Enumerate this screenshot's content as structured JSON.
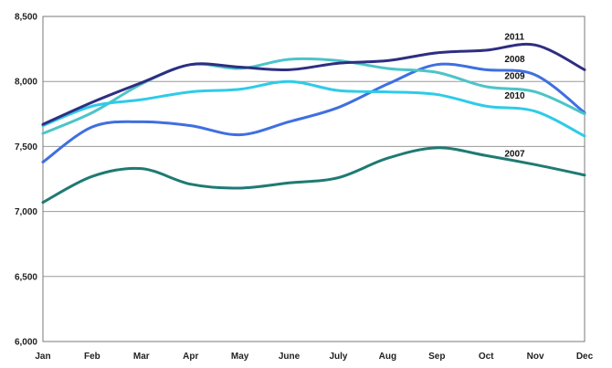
{
  "chart_data": {
    "type": "line",
    "title": "",
    "xlabel": "",
    "ylabel": "",
    "categories": [
      "Jan",
      "Feb",
      "Mar",
      "Apr",
      "May",
      "June",
      "July",
      "Aug",
      "Sep",
      "Oct",
      "Nov",
      "Dec"
    ],
    "ylim": [
      6000,
      8500
    ],
    "yticks": [
      6000,
      6500,
      7000,
      7500,
      8000,
      8500
    ],
    "ytick_labels": [
      "6,000",
      "6,500",
      "7,000",
      "7,500",
      "8,000",
      "8,500"
    ],
    "grid": "horizontal",
    "series": [
      {
        "name": "2007",
        "color": "#1f7a73",
        "values": [
          7070,
          7270,
          7330,
          7210,
          7180,
          7220,
          7260,
          7410,
          7490,
          7430,
          7360,
          7280
        ]
      },
      {
        "name": "2008",
        "color": "#3f6fe0",
        "values": [
          7380,
          7650,
          7690,
          7660,
          7590,
          7690,
          7800,
          7980,
          8130,
          8090,
          8050,
          7760
        ]
      },
      {
        "name": "2009",
        "color": "#4cc4c8",
        "values": [
          7600,
          7760,
          7980,
          8130,
          8100,
          8170,
          8160,
          8100,
          8070,
          7960,
          7920,
          7750
        ]
      },
      {
        "name": "2010",
        "color": "#2ecbe8",
        "values": [
          7660,
          7810,
          7860,
          7920,
          7940,
          8000,
          7930,
          7920,
          7900,
          7810,
          7770,
          7580
        ]
      },
      {
        "name": "2011",
        "color": "#2e2e82",
        "values": [
          7670,
          7840,
          7990,
          8130,
          8110,
          8090,
          8140,
          8160,
          8220,
          8240,
          8280,
          8090
        ]
      }
    ]
  }
}
